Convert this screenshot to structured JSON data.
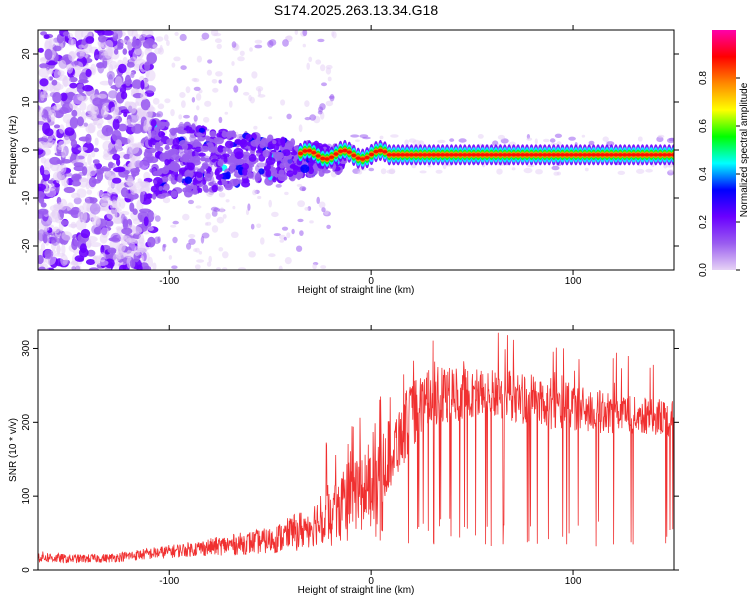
{
  "title": "S174.2025.263.13.34.G18",
  "chart_data": [
    {
      "type": "heatmap",
      "name": "spectrogram",
      "xlabel": "Height of straight line (km)",
      "ylabel": "Frequency (Hz)",
      "xlim": [
        -165,
        150
      ],
      "ylim": [
        -25,
        25
      ],
      "xticks": [
        -100,
        0,
        100
      ],
      "yticks": [
        -20,
        -10,
        0,
        10,
        20
      ],
      "dominant_ridge_hz": -1,
      "noise_extent_km": [
        -165,
        -108
      ],
      "colorbar": {
        "label": "Normalized spectral amplitude",
        "range": [
          0,
          1
        ],
        "ticks": [
          "0.0",
          "0.2",
          "0.4",
          "0.6",
          "0.8"
        ],
        "colors": [
          "#e6d2f5",
          "#9a5cf0",
          "#6a00ff",
          "#0000ff",
          "#00ffff",
          "#00ff00",
          "#ffff00",
          "#ff8800",
          "#ff0000",
          "#ff00aa"
        ]
      }
    },
    {
      "type": "line",
      "name": "snr",
      "xlabel": "Height of straight line (km)",
      "ylabel": "SNR (10 * v/v)",
      "xlim": [
        -165,
        150
      ],
      "ylim": [
        0,
        325
      ],
      "xticks": [
        -100,
        0,
        100
      ],
      "yticks": [
        0,
        100,
        200,
        300
      ],
      "color": "#f03030",
      "envelope": {
        "x": [
          -165,
          -150,
          -130,
          -110,
          -90,
          -70,
          -50,
          -40,
          -30,
          -20,
          -10,
          0,
          10,
          20,
          30,
          50,
          70,
          90,
          110,
          130,
          150
        ],
        "median": [
          18,
          15,
          16,
          22,
          28,
          34,
          40,
          48,
          60,
          80,
          100,
          120,
          160,
          210,
          235,
          240,
          235,
          225,
          215,
          210,
          205
        ],
        "spread": [
          8,
          6,
          6,
          8,
          10,
          14,
          18,
          24,
          30,
          40,
          50,
          55,
          50,
          45,
          40,
          35,
          35,
          35,
          30,
          25,
          25
        ]
      }
    }
  ]
}
